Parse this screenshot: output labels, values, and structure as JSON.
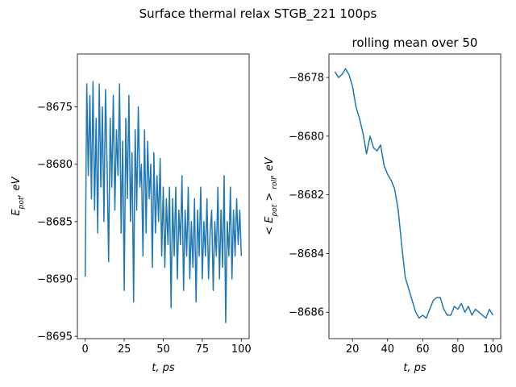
{
  "figure_title": "Surface thermal relax STGB_221 100ps",
  "chart_data": [
    {
      "type": "line",
      "xlabel": [
        "t, ps"
      ],
      "ylabel": [
        "E",
        "pot",
        ", eV"
      ],
      "xlim": [
        -5,
        105
      ],
      "ylim": [
        -8695.2,
        -8670.4
      ],
      "xticks": [
        0,
        25,
        50,
        75,
        100
      ],
      "yticks": [
        {
          "value": -8695,
          "label": "−8695"
        },
        {
          "value": -8690,
          "label": "−8690"
        },
        {
          "value": -8685,
          "label": "−8685"
        },
        {
          "value": -8680,
          "label": "−8680"
        },
        {
          "value": -8675,
          "label": "−8675"
        }
      ],
      "series": [
        {
          "color": "#1f77b4",
          "x": [
            0,
            1,
            2,
            3,
            4,
            5,
            6,
            7,
            8,
            9,
            10,
            11,
            12,
            13,
            14,
            15,
            16,
            17,
            18,
            19,
            20,
            21,
            22,
            23,
            24,
            25,
            26,
            27,
            28,
            29,
            30,
            31,
            32,
            33,
            34,
            35,
            36,
            37,
            38,
            39,
            40,
            41,
            42,
            43,
            44,
            45,
            46,
            47,
            48,
            49,
            50,
            51,
            52,
            53,
            54,
            55,
            56,
            57,
            58,
            59,
            60,
            61,
            62,
            63,
            64,
            65,
            66,
            67,
            68,
            69,
            70,
            71,
            72,
            73,
            74,
            75,
            76,
            77,
            78,
            79,
            80,
            81,
            82,
            83,
            84,
            85,
            86,
            87,
            88,
            89,
            90,
            91,
            92,
            93,
            94,
            95,
            96,
            97,
            98,
            99,
            100
          ],
          "values": [
            -8689.8,
            -8673,
            -8681,
            -8674,
            -8683,
            -8672.8,
            -8684,
            -8676,
            -8686,
            -8673,
            -8682,
            -8675,
            -8685,
            -8673.5,
            -8680,
            -8688.5,
            -8676,
            -8682,
            -8674,
            -8684,
            -8677,
            -8681,
            -8673,
            -8686,
            -8678,
            -8691,
            -8676,
            -8683,
            -8674,
            -8685,
            -8679,
            -8692,
            -8677,
            -8684,
            -8675,
            -8682,
            -8680,
            -8688,
            -8677,
            -8686,
            -8678,
            -8683,
            -8680,
            -8689,
            -8679,
            -8686,
            -8681,
            -8685,
            -8679.5,
            -8688,
            -8682,
            -8689,
            -8683,
            -8687,
            -8682,
            -8692.5,
            -8683,
            -8688,
            -8682,
            -8690,
            -8684,
            -8687,
            -8681,
            -8691,
            -8684,
            -8688,
            -8682,
            -8690,
            -8685,
            -8689,
            -8683,
            -8692,
            -8684,
            -8688,
            -8682,
            -8690,
            -8685,
            -8688,
            -8683,
            -8690,
            -8686,
            -8684,
            -8691,
            -8685,
            -8688,
            -8682,
            -8690,
            -8684,
            -8689,
            -8681,
            -8693.8,
            -8685,
            -8688,
            -8682,
            -8690,
            -8684,
            -8688,
            -8683,
            -8687,
            -8684,
            -8688
          ]
        }
      ]
    },
    {
      "type": "line",
      "title": "rolling mean over 50",
      "xlabel": [
        "t, ps"
      ],
      "ylabel": [
        "< E",
        "pot",
        " > ",
        "roll",
        ", eV"
      ],
      "xlim": [
        6.6,
        104.4
      ],
      "ylim": [
        -8686.9,
        -8677.2
      ],
      "xticks": [
        20,
        40,
        60,
        80,
        100
      ],
      "yticks": [
        {
          "value": -8686,
          "label": "−8686"
        },
        {
          "value": -8684,
          "label": "−8684"
        },
        {
          "value": -8682,
          "label": "−8682"
        },
        {
          "value": -8680,
          "label": "−8680"
        },
        {
          "value": -8678,
          "label": "−8678"
        }
      ],
      "series": [
        {
          "color": "#1f77b4",
          "x": [
            10,
            12,
            14,
            16,
            18,
            20,
            22,
            24,
            26,
            28,
            30,
            32,
            34,
            36,
            38,
            40,
            42,
            44,
            46,
            48,
            50,
            52,
            54,
            56,
            58,
            60,
            62,
            64,
            66,
            68,
            70,
            72,
            74,
            76,
            78,
            80,
            82,
            84,
            86,
            88,
            90,
            92,
            94,
            96,
            98,
            100
          ],
          "values": [
            -8677.8,
            -8678,
            -8677.9,
            -8677.7,
            -8677.9,
            -8678.3,
            -8679,
            -8679.4,
            -8679.9,
            -8680.6,
            -8680,
            -8680.4,
            -8680.5,
            -8680.3,
            -8681,
            -8681.3,
            -8681.5,
            -8681.8,
            -8682.5,
            -8683.7,
            -8684.8,
            -8685.2,
            -8685.6,
            -8686,
            -8686.2,
            -8686.1,
            -8686.2,
            -8685.9,
            -8685.6,
            -8685.5,
            -8685.5,
            -8685.9,
            -8686.1,
            -8686.1,
            -8685.8,
            -8685.9,
            -8685.7,
            -8686,
            -8685.8,
            -8686.1,
            -8685.9,
            -8686,
            -8686.1,
            -8686.2,
            -8685.9,
            -8686.1
          ]
        }
      ]
    }
  ]
}
